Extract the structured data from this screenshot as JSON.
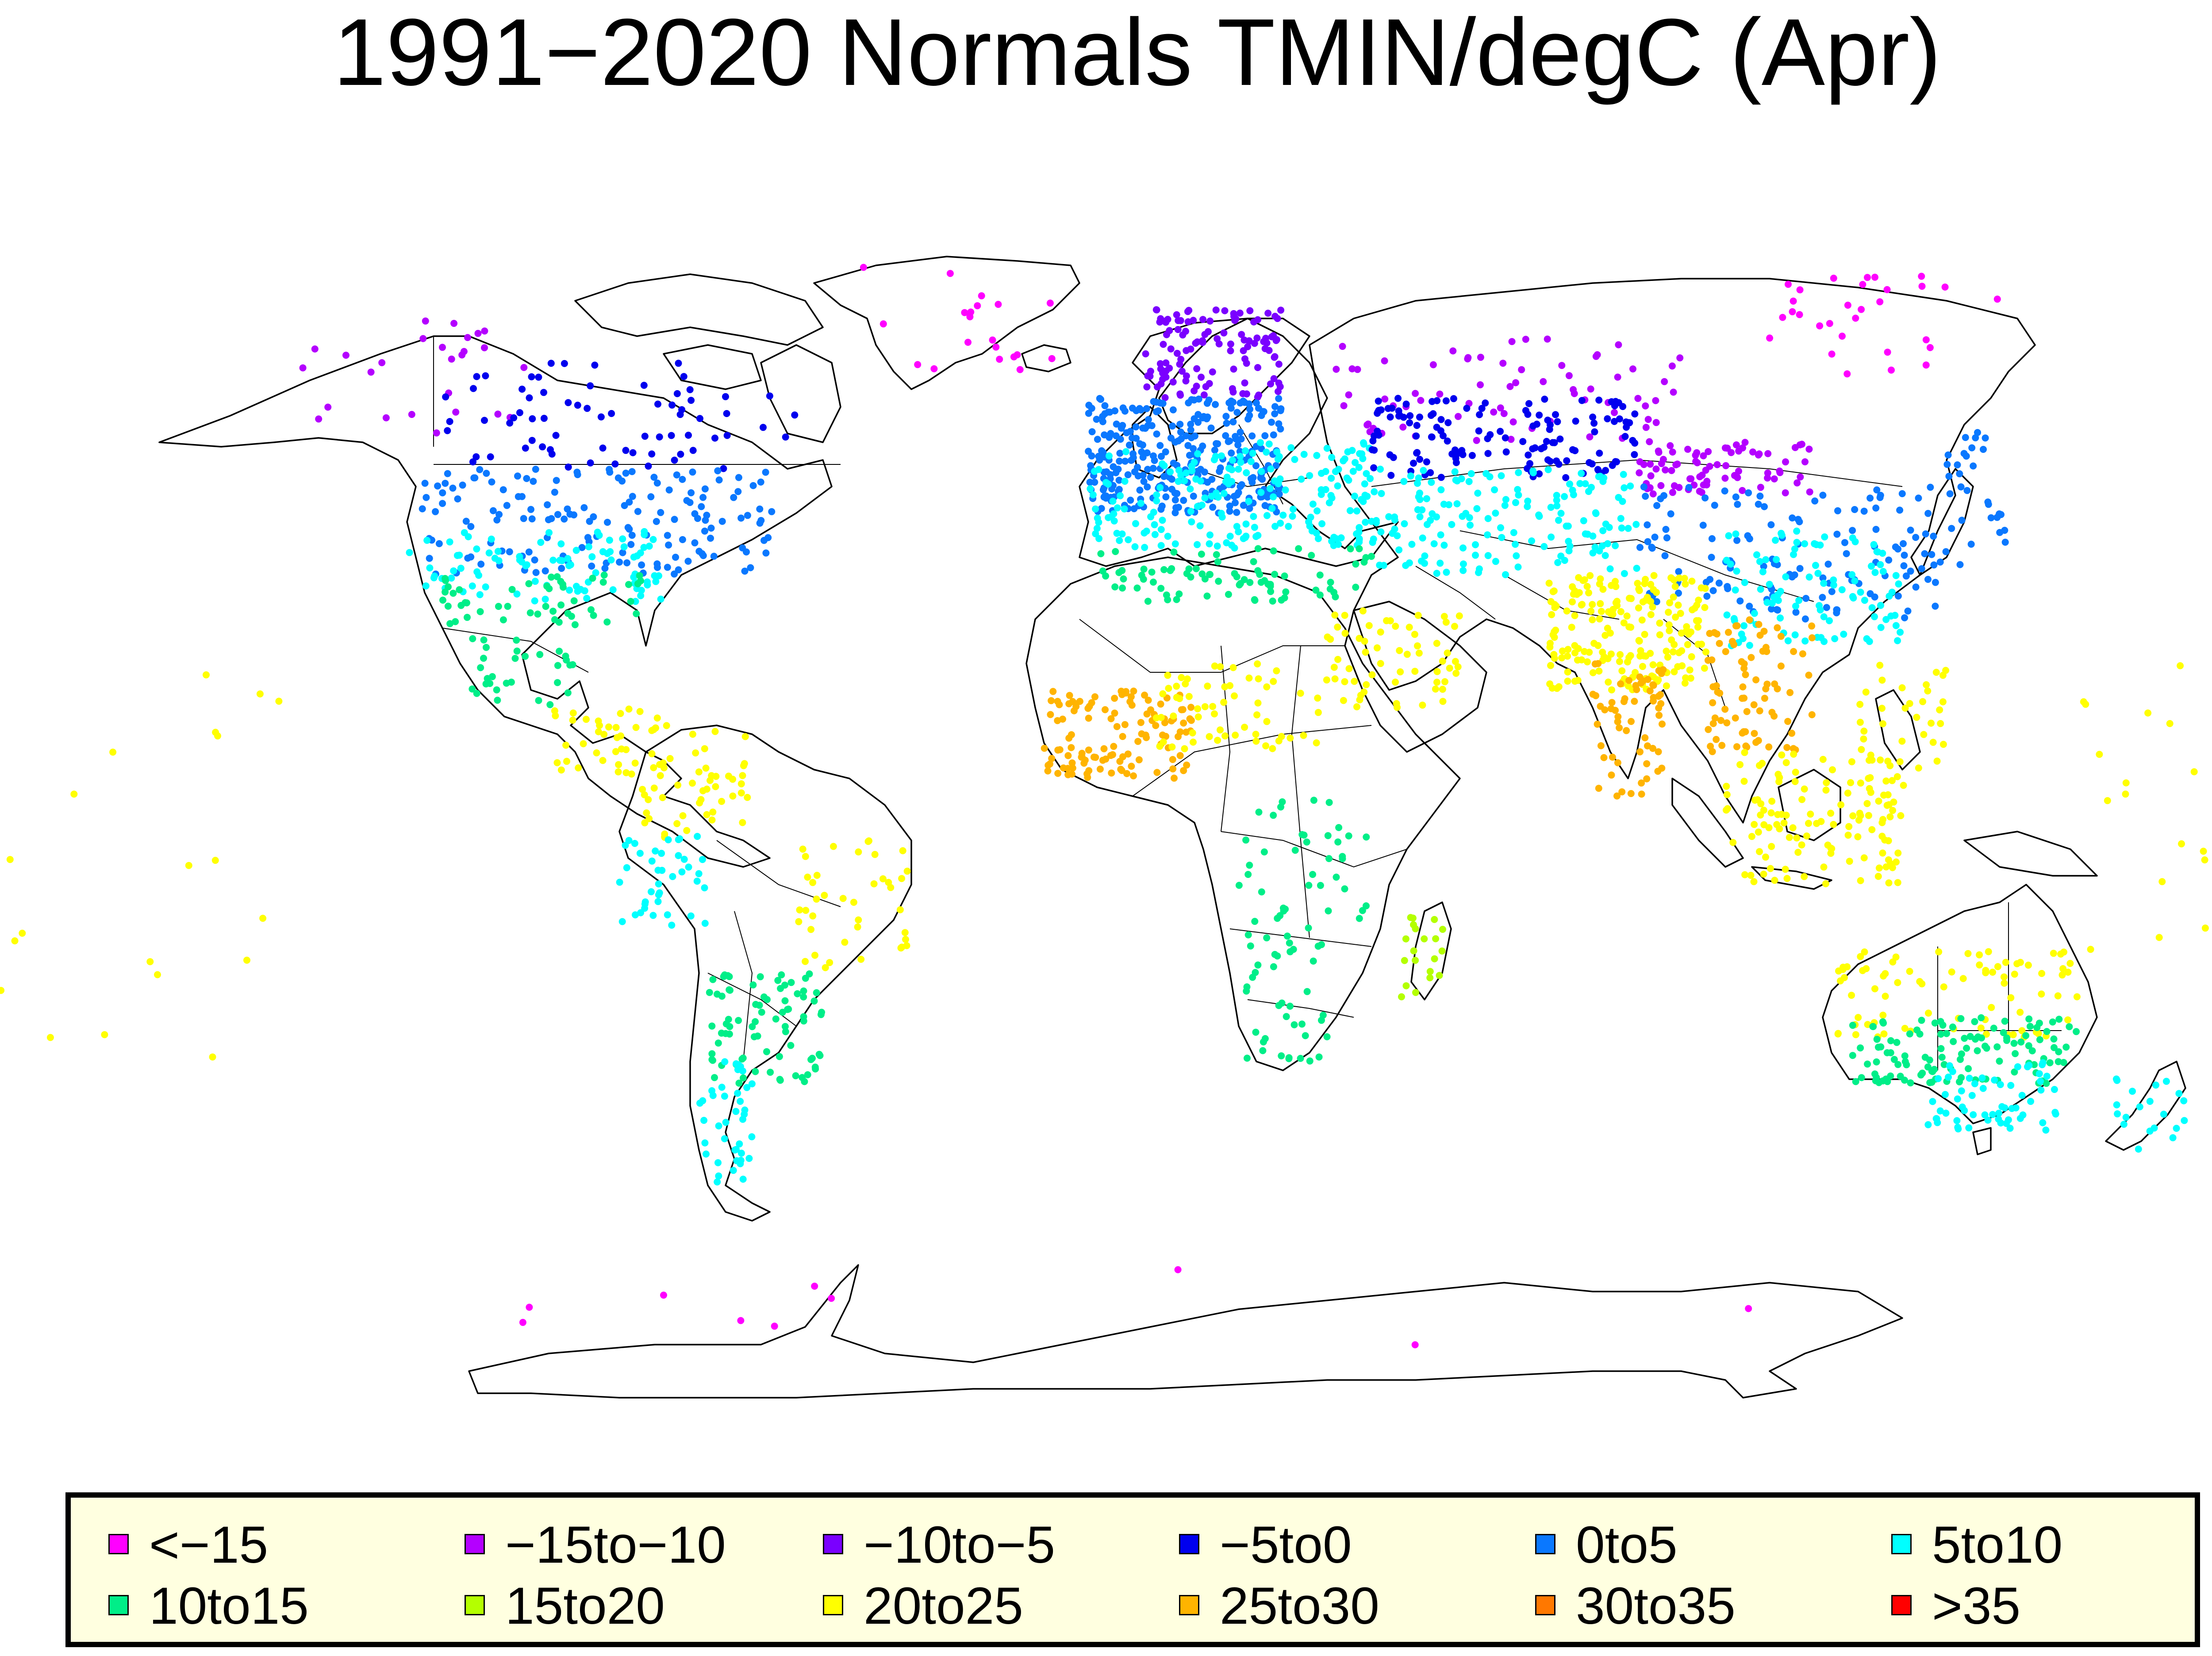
{
  "title": "1991−2020 Normals TMIN/degC  (Apr)",
  "legend": [
    {
      "label": "<−15",
      "color": "#ff00ff"
    },
    {
      "label": "−15to−10",
      "color": "#b400ff"
    },
    {
      "label": "−10to−5",
      "color": "#7a00ff"
    },
    {
      "label": "−5to0",
      "color": "#0000ee"
    },
    {
      "label": "0to5",
      "color": "#0a78ff"
    },
    {
      "label": "5to10",
      "color": "#00ffff"
    },
    {
      "label": "10to15",
      "color": "#00ee88"
    },
    {
      "label": "15to20",
      "color": "#b4ff00"
    },
    {
      "label": "20to25",
      "color": "#ffff00"
    },
    {
      "label": "25to30",
      "color": "#ffb400"
    },
    {
      "label": "30to35",
      "color": "#ff7800"
    },
    {
      "label": ">35",
      "color": "#ff0000"
    }
  ],
  "colors": {
    "background": "#ffffff",
    "legend_bg": "#ffffe0",
    "coastline": "#000000"
  }
}
